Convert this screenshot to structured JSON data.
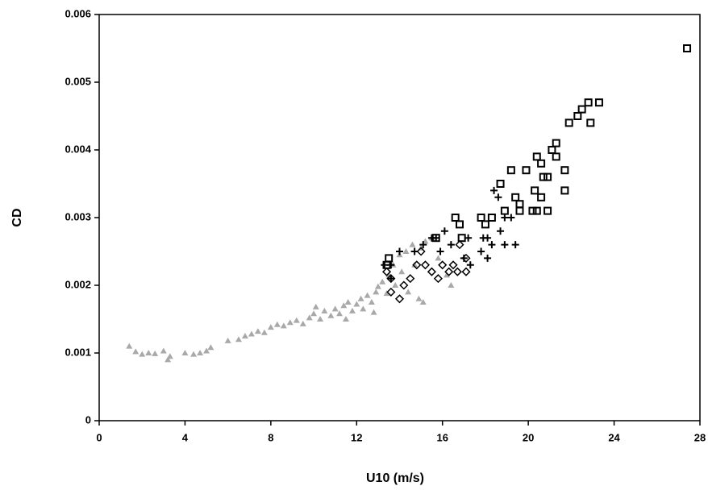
{
  "chart_data": {
    "type": "scatter",
    "x_label": "U10 (m/s)",
    "y_label": "CD",
    "xlim": [
      0,
      28
    ],
    "xticks": [
      0,
      4,
      8,
      12,
      16,
      20,
      24,
      28
    ],
    "ylim": [
      0,
      0.006
    ],
    "yticks": [
      0,
      0.001,
      0.002,
      0.003,
      0.004,
      0.005,
      0.006
    ],
    "grid": false,
    "series": [
      {
        "marker": "triangle",
        "color": "#a9a9a9",
        "x": [
          1.4,
          1.7,
          2.0,
          2.3,
          2.6,
          3.0,
          3.2,
          3.3,
          4.0,
          4.4,
          4.7,
          5.0,
          5.2,
          6.0,
          6.5,
          6.8,
          7.1,
          7.4,
          7.7,
          8.0,
          8.3,
          8.6,
          8.9,
          9.2,
          9.5,
          9.8,
          10.0,
          10.1,
          10.3,
          10.5,
          10.8,
          11.0,
          11.2,
          11.4,
          11.6,
          11.8,
          12.0,
          12.2,
          12.3,
          12.5,
          12.7,
          12.9,
          13.0,
          13.2,
          13.4,
          13.5,
          13.7,
          13.8,
          14.0,
          14.1,
          14.3,
          14.4,
          14.6,
          14.7,
          14.9,
          15.0,
          15.2,
          15.5,
          15.8,
          16.2,
          16.4,
          15.1,
          11.5,
          12.8
        ],
        "values": [
          0.0011,
          0.00102,
          0.00098,
          0.001,
          0.00099,
          0.00103,
          0.0009,
          0.00095,
          0.001,
          0.00098,
          0.001,
          0.00103,
          0.00108,
          0.00118,
          0.0012,
          0.00125,
          0.00128,
          0.00132,
          0.0013,
          0.00138,
          0.00142,
          0.0014,
          0.00145,
          0.00148,
          0.00143,
          0.00152,
          0.00158,
          0.00168,
          0.0015,
          0.00162,
          0.00155,
          0.00165,
          0.00158,
          0.0017,
          0.00175,
          0.00162,
          0.00172,
          0.0018,
          0.00165,
          0.00185,
          0.00175,
          0.0019,
          0.00198,
          0.00205,
          0.00188,
          0.00215,
          0.0023,
          0.002,
          0.00245,
          0.0022,
          0.0025,
          0.0019,
          0.0026,
          0.0023,
          0.0018,
          0.00255,
          0.00265,
          0.0027,
          0.0024,
          0.00215,
          0.002,
          0.00175,
          0.0015,
          0.0016
        ]
      },
      {
        "marker": "diamond",
        "color": "#000000",
        "x": [
          13.6,
          13.4,
          13.6,
          14.5,
          14.2,
          14.0,
          14.8,
          15.0,
          15.2,
          15.5,
          15.8,
          16.0,
          16.3,
          16.7,
          17.1,
          17.1,
          16.8,
          16.5
        ],
        "values": [
          0.0019,
          0.0022,
          0.0021,
          0.0021,
          0.002,
          0.0018,
          0.0023,
          0.0025,
          0.0023,
          0.0022,
          0.0021,
          0.0023,
          0.0022,
          0.0022,
          0.0022,
          0.0024,
          0.0026,
          0.0023
        ]
      },
      {
        "marker": "plus",
        "color": "#000000",
        "x": [
          18.6,
          19.2,
          18.9,
          18.7,
          17.9,
          18.1,
          18.3,
          18.9,
          19.4,
          17.8,
          18.1,
          17.3,
          17.0,
          16.4,
          15.9,
          16.1,
          15.7,
          15.5,
          15.1,
          14.7,
          14.0,
          13.6,
          13.3,
          13.6,
          17.2,
          18.4
        ],
        "values": [
          0.0033,
          0.003,
          0.003,
          0.0028,
          0.0027,
          0.0027,
          0.0026,
          0.0026,
          0.0026,
          0.0025,
          0.0024,
          0.0023,
          0.0024,
          0.0026,
          0.0025,
          0.0028,
          0.0027,
          0.0027,
          0.0026,
          0.0025,
          0.0025,
          0.0023,
          0.0023,
          0.0021,
          0.0027,
          0.0034
        ]
      },
      {
        "marker": "square",
        "color": "#000000",
        "x": [
          27.4,
          23.3,
          22.8,
          22.5,
          22.3,
          21.9,
          22.9,
          21.3,
          21.1,
          20.4,
          21.3,
          20.6,
          20.7,
          20.9,
          19.9,
          21.7,
          19.2,
          19.4,
          19.6,
          19.6,
          20.2,
          20.4,
          20.9,
          20.6,
          18.7,
          21.7,
          20.3,
          18.0,
          18.3,
          17.8,
          16.6,
          16.8,
          16.9,
          15.7,
          13.4,
          13.5,
          18.9
        ],
        "values": [
          0.0055,
          0.0047,
          0.0047,
          0.0046,
          0.0045,
          0.0044,
          0.0044,
          0.0041,
          0.004,
          0.0039,
          0.0039,
          0.0038,
          0.0036,
          0.0036,
          0.0037,
          0.0037,
          0.0037,
          0.0033,
          0.0032,
          0.0031,
          0.0031,
          0.0031,
          0.0031,
          0.0033,
          0.0035,
          0.0034,
          0.0034,
          0.0029,
          0.003,
          0.003,
          0.003,
          0.0029,
          0.0027,
          0.0027,
          0.0023,
          0.0024,
          0.0031
        ]
      }
    ]
  }
}
